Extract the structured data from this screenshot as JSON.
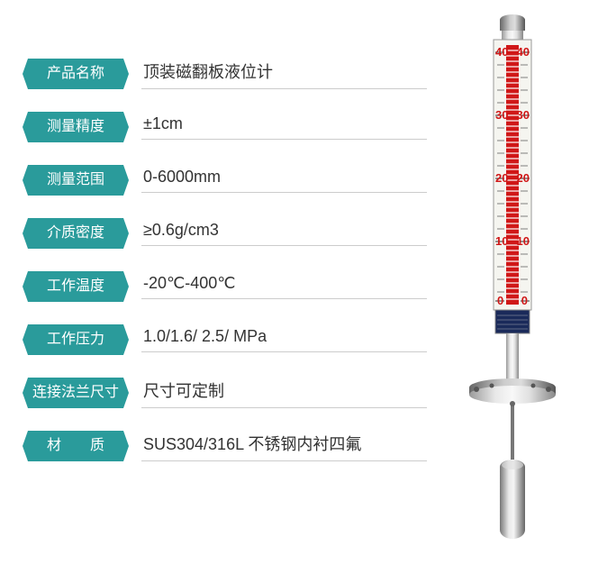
{
  "colors": {
    "label_bg": "#2a9b9b",
    "value_text": "#333333",
    "divider": "#cccccc",
    "gauge_red": "#d01818",
    "gauge_body": "#c8c8c8",
    "gauge_dark": "#888888",
    "nameplate": "#1a2a5a",
    "float_body": "#b8b8b8"
  },
  "specs": [
    {
      "label": "产品名称",
      "value": "顶装磁翻板液位计"
    },
    {
      "label": "测量精度",
      "value": "±1cm"
    },
    {
      "label": "测量范围",
      "value": "0-6000mm"
    },
    {
      "label": "介质密度",
      "value": "≥0.6g/cm3"
    },
    {
      "label": "工作温度",
      "value": "-20℃-400℃"
    },
    {
      "label": "工作压力",
      "value": "1.0/1.6/ 2.5/ MPa"
    },
    {
      "label": "连接法兰尺寸",
      "value": "尺寸可定制"
    },
    {
      "label": "材　　质",
      "value": "SUS304/316L 不锈钢内衬四氟"
    }
  ],
  "gauge": {
    "scale_marks": [
      "40",
      "30",
      "20",
      "10",
      "0"
    ],
    "scale_color_top": "#d01818",
    "scale_color_bottom": "#d01818"
  }
}
